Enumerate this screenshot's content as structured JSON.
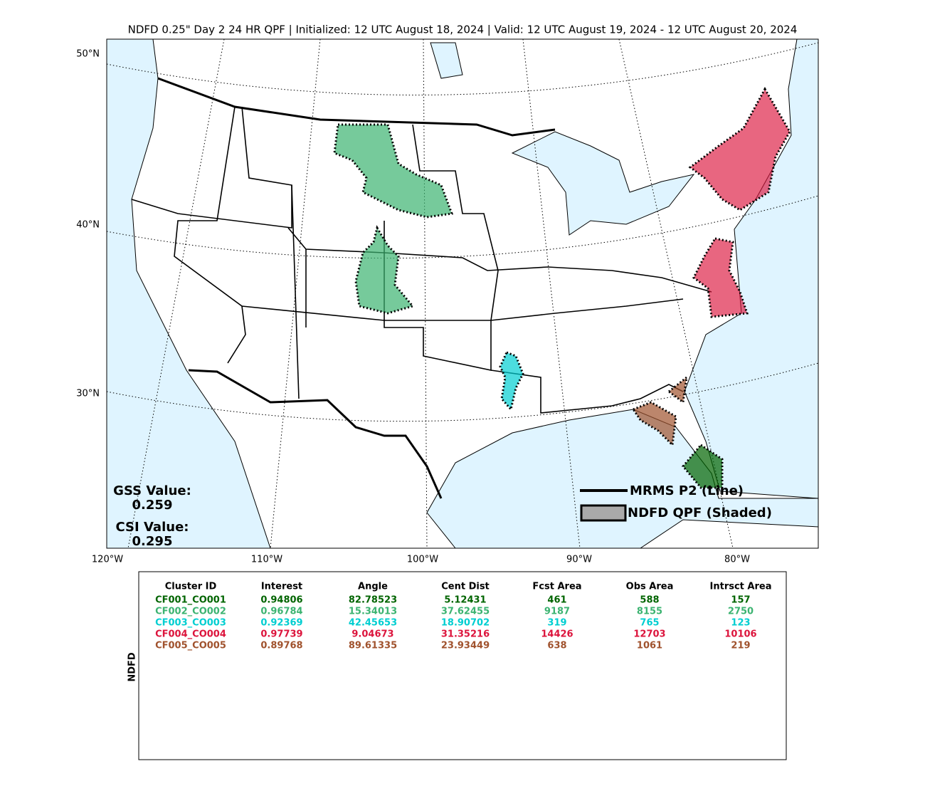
{
  "title": "NDFD 0.25\" Day 2 24 HR QPF | Initialized: 12 UTC August 18, 2024 | Valid: 12 UTC August 19, 2024 - 12 UTC August 20, 2024",
  "map": {
    "lat_labels": [
      "50°N",
      "40°N",
      "30°N"
    ],
    "lon_labels": [
      "120°W",
      "110°W",
      "100°W",
      "90°W",
      "80°W"
    ],
    "legend": [
      "MRMS P2 (Line)",
      "NDFD QPF (Shaded)"
    ],
    "scores": [
      {
        "label": "GSS Value:",
        "value": "0.259"
      },
      {
        "label": "CSI Value:",
        "value": "0.295"
      }
    ]
  },
  "table": {
    "side_label": "NDFD",
    "headers": [
      "Cluster ID",
      "Interest",
      "Angle",
      "Cent Dist",
      "Fcst Area",
      "Obs Area",
      "Intrsct Area"
    ],
    "rows": [
      {
        "color": "#006400",
        "cells": [
          "CF001_CO001",
          "0.94806",
          "82.78523",
          "5.12431",
          "461",
          "588",
          "157"
        ]
      },
      {
        "color": "#3cb371",
        "cells": [
          "CF002_CO002",
          "0.96784",
          "15.34013",
          "37.62455",
          "9187",
          "8155",
          "2750"
        ]
      },
      {
        "color": "#00ced1",
        "cells": [
          "CF003_CO003",
          "0.92369",
          "42.45653",
          "18.90702",
          "319",
          "765",
          "123"
        ]
      },
      {
        "color": "#dc143c",
        "cells": [
          "CF004_CO004",
          "0.97739",
          "9.04673",
          "31.35216",
          "14426",
          "12703",
          "10106"
        ]
      },
      {
        "color": "#a0522d",
        "cells": [
          "CF005_CO005",
          "0.89768",
          "89.61335",
          "23.93449",
          "638",
          "1061",
          "219"
        ]
      }
    ]
  }
}
